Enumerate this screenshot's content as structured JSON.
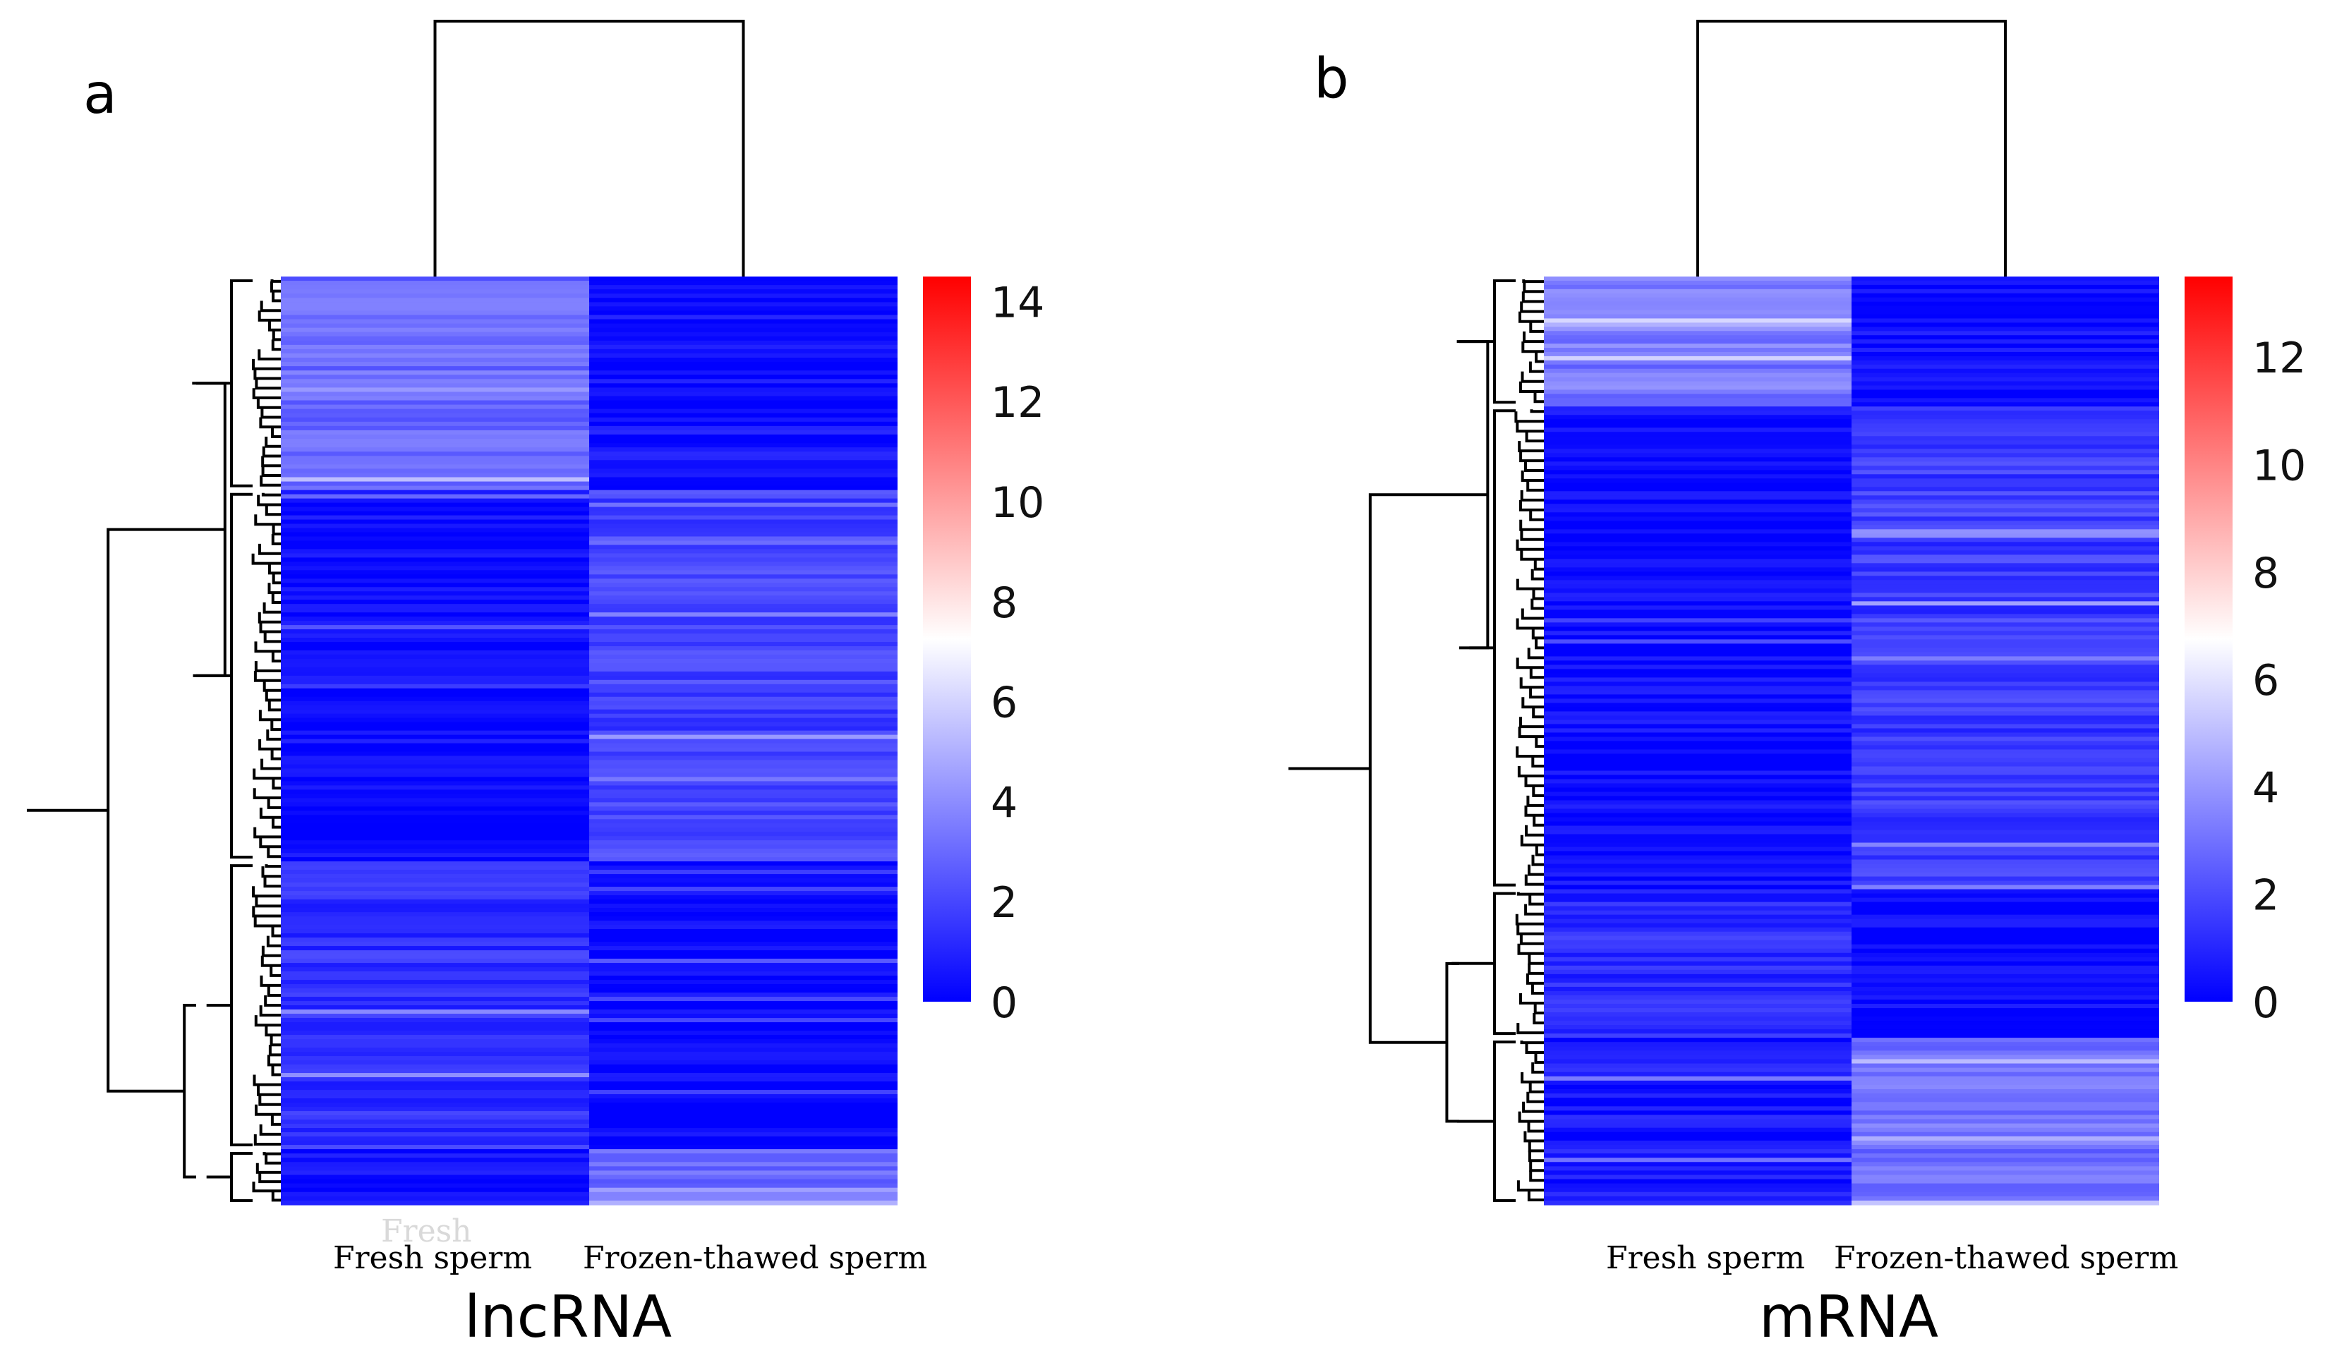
{
  "chart_data": [
    {
      "type": "heatmap",
      "panel_letter": "a",
      "title": "lncRNA",
      "columns": [
        "Fresh sperm",
        "Frozen-thawed sperm"
      ],
      "colorbar": {
        "min": 0,
        "max": 14.5,
        "ticks": [
          0,
          2,
          4,
          6,
          8,
          10,
          12,
          14
        ],
        "colors": {
          "low": "#0000ff",
          "mid": "#ffffff",
          "high": "#ff0000"
        },
        "mid_value": 7.25
      },
      "row_blocks": [
        {
          "fraction": 0.23,
          "values": [
            3.0,
            0.4
          ]
        },
        {
          "fraction": 0.4,
          "values": [
            0.2,
            1.9
          ]
        },
        {
          "fraction": 0.31,
          "values": [
            1.4,
            0.1
          ]
        },
        {
          "fraction": 0.06,
          "values": [
            0.3,
            3.2
          ]
        }
      ]
    },
    {
      "type": "heatmap",
      "panel_letter": "b",
      "title": "mRNA",
      "columns": [
        "Fresh sperm",
        "Frozen-thawed sperm"
      ],
      "colorbar": {
        "min": 0,
        "max": 13.5,
        "ticks": [
          0,
          2,
          4,
          6,
          8,
          10,
          12
        ],
        "colors": {
          "low": "#0000ff",
          "mid": "#ffffff",
          "high": "#ff0000"
        },
        "mid_value": 6.75
      },
      "row_blocks": [
        {
          "fraction": 0.14,
          "values": [
            3.2,
            0.3
          ]
        },
        {
          "fraction": 0.52,
          "values": [
            0.2,
            1.6
          ]
        },
        {
          "fraction": 0.16,
          "values": [
            1.1,
            0.1
          ]
        },
        {
          "fraction": 0.18,
          "values": [
            0.6,
            3.0
          ]
        }
      ]
    }
  ]
}
